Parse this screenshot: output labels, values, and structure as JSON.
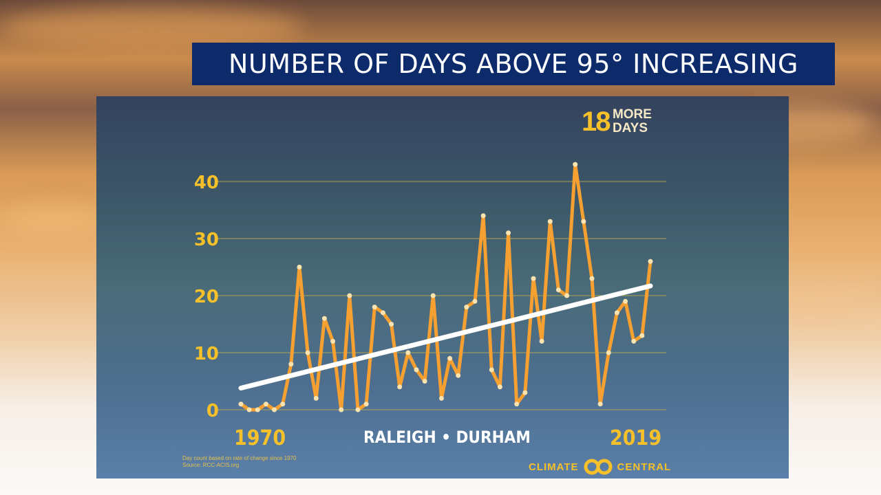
{
  "title": "NUMBER OF DAYS ABOVE 95° INCREASING",
  "badge": {
    "number": "18",
    "line1": "MORE",
    "line2": "DAYS"
  },
  "location": "RALEIGH • DURHAM",
  "start_label": "1970",
  "end_label": "2019",
  "notes": [
    "Day count based on rate of change since 1970",
    "Source: RCC-ACIS.org"
  ],
  "logo": {
    "left": "CLIMATE",
    "right": "CENTRAL"
  },
  "colors": {
    "line": "#f5a030",
    "trend": "#ffffff",
    "grid": "#c9b24a",
    "accent": "#f5c02a"
  },
  "chart_data": {
    "type": "line",
    "title": "NUMBER OF DAYS ABOVE 95° INCREASING",
    "xlabel": "",
    "ylabel": "",
    "ylim": [
      0,
      43
    ],
    "yticks": [
      0,
      10,
      20,
      30,
      40
    ],
    "x": [
      1970,
      1971,
      1972,
      1973,
      1974,
      1975,
      1976,
      1977,
      1978,
      1979,
      1980,
      1981,
      1982,
      1983,
      1984,
      1985,
      1986,
      1987,
      1988,
      1989,
      1990,
      1991,
      1992,
      1993,
      1994,
      1995,
      1996,
      1997,
      1998,
      1999,
      2000,
      2001,
      2002,
      2003,
      2004,
      2005,
      2006,
      2007,
      2008,
      2009,
      2010,
      2011,
      2012,
      2013,
      2014,
      2015,
      2016,
      2017,
      2018,
      2019
    ],
    "series": [
      {
        "name": "Days above 95°",
        "values": [
          1,
          0,
          0,
          1,
          0,
          1,
          8,
          25,
          10,
          2,
          16,
          12,
          0,
          20,
          0,
          1,
          18,
          17,
          15,
          4,
          10,
          7,
          5,
          20,
          2,
          9,
          6,
          18,
          19,
          34,
          7,
          4,
          31,
          1,
          3,
          23,
          12,
          33,
          21,
          20,
          43,
          33,
          23,
          1,
          10,
          17,
          19,
          12,
          13,
          26
        ]
      },
      {
        "name": "Trend",
        "values": [
          3.8,
          21.7
        ],
        "x": [
          1970,
          2019
        ]
      }
    ],
    "grid": true
  }
}
